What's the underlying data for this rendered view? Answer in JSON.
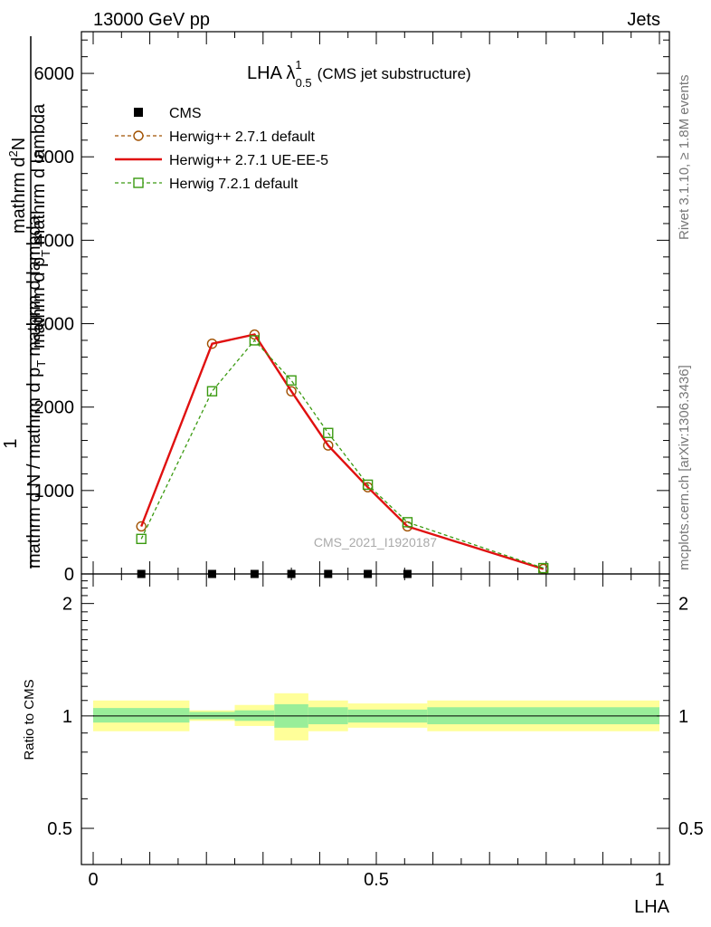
{
  "header": {
    "left": "13000 GeV pp",
    "right": "Jets",
    "side_top": "Rivet 3.1.10, ≥ 1.8M events",
    "side_bottom": "mcplots.cern.ch [arXiv:1306.3436]"
  },
  "chart_data": {
    "type": "line",
    "title_main": "LHA λ",
    "title_sup": "1",
    "title_sub": "0.5",
    "title_note": "(CMS jet substructure)",
    "watermark": "CMS_2021_I1920187",
    "ylabel_numerator": "1",
    "ylabel_denominator": "mathrm d N / mathrm d p",
    "ylabel_denominator_sub": "T",
    "ylabel_denominator_end": "mathrm d lambda",
    "ylabel_top": "mathrm d",
    "ylabel_top_sup": "2",
    "ylabel_top_end": "N",
    "ylabel_mid": "mathrm d p",
    "ylabel_mid_sub": "T",
    "ylabel_mid_end": " mathrm d lambda",
    "xlabel": "LHA",
    "xlim": [
      0,
      1
    ],
    "ylim": [
      0,
      6500
    ],
    "x_ticks": [
      "0",
      "0.5",
      "1"
    ],
    "y_ticks": [
      "0",
      "1000",
      "2000",
      "3000",
      "4000",
      "5000",
      "6000"
    ],
    "legend_position": "top-left",
    "series": [
      {
        "name": "CMS",
        "color": "#000000",
        "marker": "filled-square",
        "x": [
          0.085,
          0.21,
          0.285,
          0.35,
          0.415,
          0.485,
          0.555
        ],
        "y": [
          0,
          0,
          0,
          0,
          0,
          0,
          0
        ]
      },
      {
        "name": "Herwig++ 2.7.1 default",
        "color": "#a05000",
        "marker": "open-circle",
        "x": [
          0.085,
          0.21,
          0.285,
          0.35,
          0.415,
          0.485,
          0.555,
          0.795
        ],
        "y": [
          570,
          2760,
          2870,
          2190,
          1540,
          1040,
          570,
          60
        ]
      },
      {
        "name": "Herwig++ 2.7.1 UE-EE-5",
        "color": "#e01010",
        "marker": "none",
        "x": [
          0.085,
          0.21,
          0.285,
          0.35,
          0.415,
          0.485,
          0.555,
          0.795
        ],
        "y": [
          570,
          2760,
          2870,
          2190,
          1540,
          1040,
          570,
          60
        ]
      },
      {
        "name": "Herwig 7.2.1 default",
        "color": "#3a9a10",
        "marker": "open-square",
        "x": [
          0.085,
          0.21,
          0.285,
          0.35,
          0.415,
          0.485,
          0.555,
          0.795
        ],
        "y": [
          420,
          2190,
          2800,
          2320,
          1690,
          1070,
          620,
          70
        ]
      }
    ],
    "ratio": {
      "ylabel": "Ratio to CMS",
      "ylim": [
        0.4,
        2.4
      ],
      "y_ticks": [
        "0.5",
        "1",
        "2"
      ],
      "bins": [
        {
          "x0": 0.0,
          "x1": 0.17,
          "inner": [
            0.96,
            1.05
          ],
          "outer": [
            0.91,
            1.1
          ]
        },
        {
          "x0": 0.17,
          "x1": 0.25,
          "inner": [
            0.98,
            1.025
          ],
          "outer": [
            0.97,
            1.035
          ]
        },
        {
          "x0": 0.25,
          "x1": 0.32,
          "inner": [
            0.97,
            1.035
          ],
          "outer": [
            0.94,
            1.07
          ]
        },
        {
          "x0": 0.32,
          "x1": 0.38,
          "inner": [
            0.93,
            1.075
          ],
          "outer": [
            0.86,
            1.15
          ]
        },
        {
          "x0": 0.38,
          "x1": 0.45,
          "inner": [
            0.95,
            1.055
          ],
          "outer": [
            0.91,
            1.1
          ]
        },
        {
          "x0": 0.45,
          "x1": 0.59,
          "inner": [
            0.96,
            1.04
          ],
          "outer": [
            0.93,
            1.08
          ]
        },
        {
          "x0": 0.59,
          "x1": 1.0,
          "inner": [
            0.95,
            1.055
          ],
          "outer": [
            0.91,
            1.1
          ]
        }
      ]
    }
  }
}
